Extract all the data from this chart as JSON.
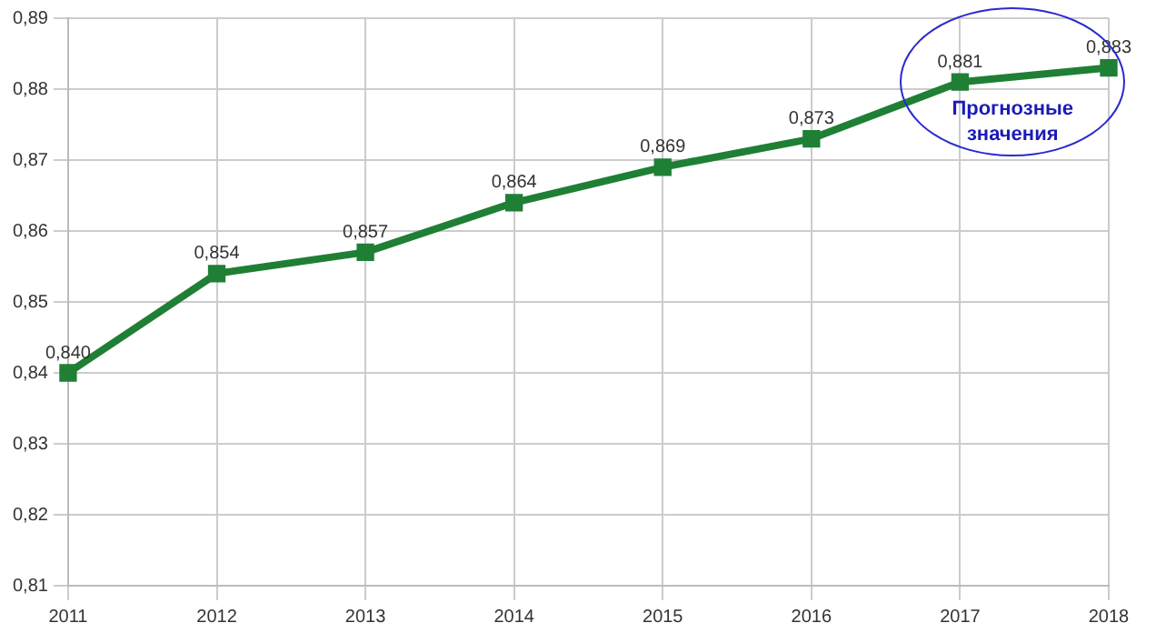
{
  "chart_data": {
    "type": "line",
    "categories": [
      "2011",
      "2012",
      "2013",
      "2014",
      "2015",
      "2016",
      "2017",
      "2018"
    ],
    "series": [
      {
        "color": "#1f7f35",
        "values": [
          0.84,
          0.854,
          0.857,
          0.864,
          0.869,
          0.873,
          0.881,
          0.883
        ],
        "value_labels": [
          "0,840",
          "0,854",
          "0,857",
          "0,864",
          "0,869",
          "0,873",
          "0,881",
          "0,883"
        ]
      }
    ],
    "ylim": [
      0.81,
      0.89
    ],
    "yticks": [
      {
        "value": 0.81,
        "label": "0,81"
      },
      {
        "value": 0.82,
        "label": "0,82"
      },
      {
        "value": 0.83,
        "label": "0,83"
      },
      {
        "value": 0.84,
        "label": "0,84"
      },
      {
        "value": 0.85,
        "label": "0,85"
      },
      {
        "value": 0.86,
        "label": "0,86"
      },
      {
        "value": 0.87,
        "label": "0,87"
      },
      {
        "value": 0.88,
        "label": "0,88"
      },
      {
        "value": 0.89,
        "label": "0,89"
      }
    ],
    "grid": true,
    "legend": false,
    "marker": "square",
    "line_style": "solid",
    "annotations": [
      "Прогнозные значения"
    ]
  }
}
